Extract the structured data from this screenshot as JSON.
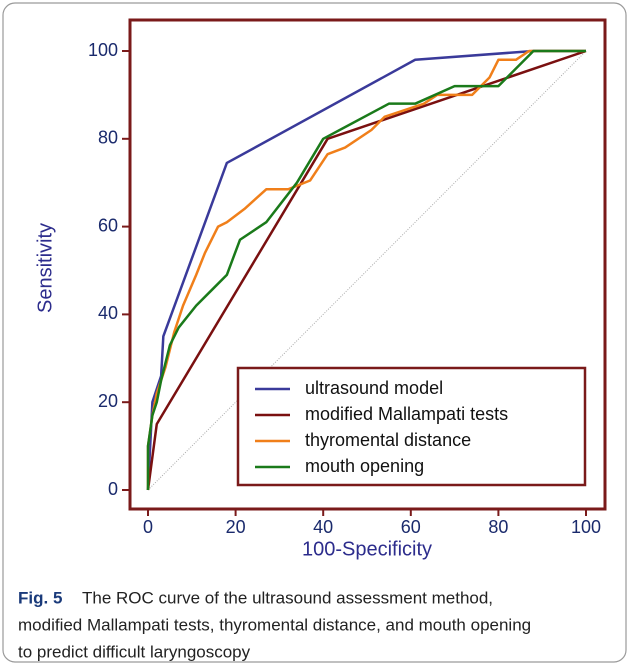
{
  "chart_data": {
    "type": "line",
    "xlabel": "100-Specificity",
    "ylabel": "Sensitivity",
    "xlim": [
      0,
      100
    ],
    "ylim": [
      0,
      100
    ],
    "xticks": [
      0,
      20,
      40,
      60,
      80,
      100
    ],
    "yticks": [
      0,
      20,
      40,
      60,
      80,
      100
    ],
    "legend": "lower right",
    "series": [
      {
        "name": "ultrasound model",
        "color": "#3a3a9a",
        "x": [
          0,
          0.5,
          1,
          3,
          3.5,
          18,
          61,
          88,
          100
        ],
        "values": [
          0,
          10,
          20,
          26,
          35,
          74.5,
          98,
          100,
          100
        ]
      },
      {
        "name": "modified Mallampati tests",
        "color": "#7a1010",
        "x": [
          0,
          2,
          41,
          100
        ],
        "values": [
          0,
          15,
          80,
          100
        ]
      },
      {
        "name": "thyromental distance",
        "color": "#f07f1a",
        "x": [
          0,
          0,
          1,
          2,
          4,
          6,
          8,
          11,
          13,
          16,
          18,
          22,
          27,
          32,
          37,
          41,
          45,
          51,
          54,
          63,
          66,
          74,
          78,
          80,
          84,
          87,
          100
        ],
        "values": [
          0,
          10,
          17,
          22,
          28,
          36,
          42,
          49,
          54,
          60,
          61,
          64,
          68.5,
          68.5,
          70.5,
          76.5,
          78,
          82,
          85,
          88,
          90,
          90,
          94,
          98,
          98,
          100,
          100
        ]
      },
      {
        "name": "mouth opening",
        "color": "#1a7a1a",
        "x": [
          0,
          0,
          1,
          2,
          3,
          5,
          7,
          11,
          15,
          18,
          21,
          27,
          34,
          40,
          55,
          61,
          70,
          80,
          88,
          100
        ],
        "values": [
          0,
          10,
          17,
          20,
          25,
          33,
          37,
          42,
          46,
          49,
          57,
          61,
          70,
          80,
          88,
          88,
          92,
          92,
          100,
          100
        ]
      }
    ]
  },
  "caption": {
    "label": "Fig. 5",
    "lines": [
      "The ROC curve of the ultrasound assessment method,",
      "modified Mallampati tests, thyromental distance, and mouth opening",
      "to predict difficult laryngoscopy"
    ]
  }
}
